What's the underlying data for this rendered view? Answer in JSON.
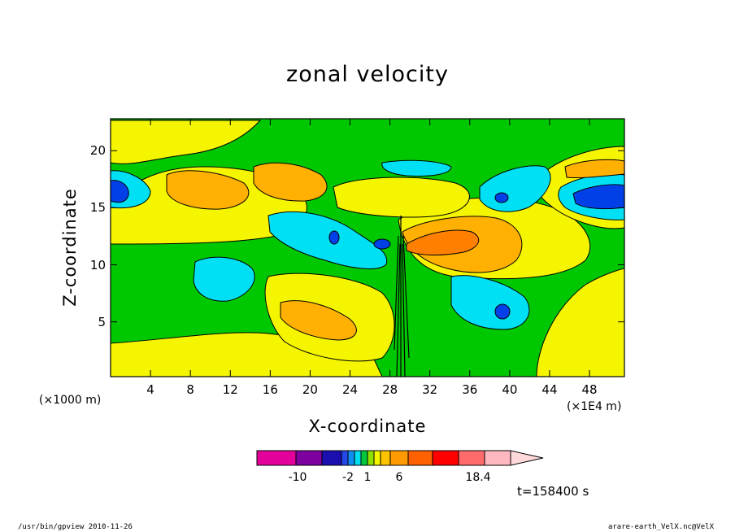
{
  "chart_data": {
    "type": "heatmap",
    "title": "zonal velocity",
    "xlabel": "X-coordinate",
    "ylabel": "Z-coordinate",
    "x_unit_left": "(×1000 m)",
    "x_unit_right": "(×1E4 m)",
    "xlim": [
      0,
      51.5
    ],
    "ylim": [
      0.2,
      22.8
    ],
    "x_ticks": [
      "4",
      "8",
      "12",
      "16",
      "20",
      "24",
      "28",
      "32",
      "36",
      "40",
      "44",
      "48"
    ],
    "x_tick_values": [
      4,
      8,
      12,
      16,
      20,
      24,
      28,
      32,
      36,
      40,
      44,
      48
    ],
    "y_ticks": [
      "5",
      "10",
      "15",
      "20"
    ],
    "y_tick_values": [
      5,
      10,
      15,
      20
    ],
    "colorbar": {
      "labels": [
        "-10",
        "-2",
        "1",
        "6",
        "18.4"
      ],
      "label_values": [
        -10,
        -2,
        1,
        6,
        18.4
      ],
      "segments": [
        {
          "color": "#e4009b"
        },
        {
          "color": "#7d009f"
        },
        {
          "color": "#1c0fb0"
        },
        {
          "color": "#2447e8"
        },
        {
          "color": "#0f8ef2"
        },
        {
          "color": "#00ddee"
        },
        {
          "color": "#00c63e"
        },
        {
          "color": "#8ee000"
        },
        {
          "color": "#f5f500"
        },
        {
          "color": "#ffc400"
        },
        {
          "color": "#ff9b00"
        },
        {
          "color": "#ff6000"
        },
        {
          "color": "#ff0000"
        },
        {
          "color": "#ff6a6a"
        },
        {
          "color": "#ffb7c0"
        }
      ]
    },
    "field_colors": {
      "green": "#00c800",
      "yellow": "#f5f500",
      "orange": "#ffb000",
      "dark_orange": "#ff8000",
      "cyan": "#00e0f5",
      "blue": "#0040e6",
      "dark_blue": "#1010a0"
    },
    "time": "t=158400 s"
  },
  "footer": {
    "left": "/usr/bin/gpview   2010-11-26",
    "right": "arare-earth_VelX.nc@VelX"
  }
}
